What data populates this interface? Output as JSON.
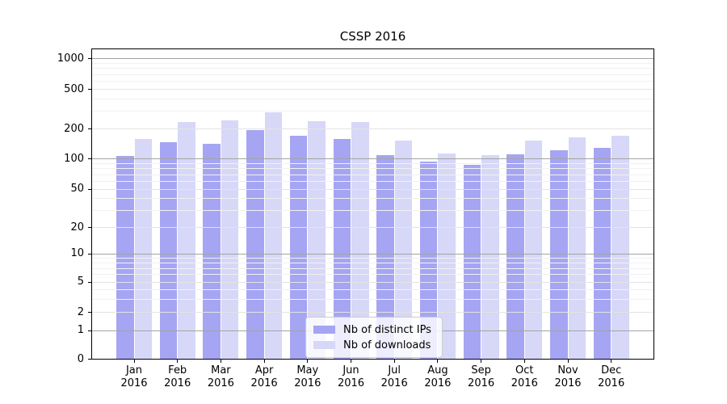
{
  "chart_data": {
    "type": "bar",
    "title": "CSSP 2016",
    "categories": [
      "Jan 2016",
      "Feb 2016",
      "Mar 2016",
      "Apr 2016",
      "May 2016",
      "Jun 2016",
      "Jul 2016",
      "Aug 2016",
      "Sep 2016",
      "Oct 2016",
      "Nov 2016",
      "Dec 2016"
    ],
    "series": [
      {
        "name": "Nb of distinct IPs",
        "color": "#a5a5f3",
        "values": [
          108,
          147,
          143,
          194,
          170,
          160,
          110,
          94,
          87,
          112,
          122,
          130
        ]
      },
      {
        "name": "Nb of downloads",
        "color": "#d7d7f8",
        "values": [
          160,
          237,
          246,
          295,
          242,
          236,
          153,
          113,
          110,
          152,
          165,
          172
        ]
      }
    ],
    "xlabel": "",
    "ylabel": "",
    "yscale": "symlog",
    "yticks": [
      0,
      1,
      2,
      5,
      10,
      20,
      50,
      100,
      200,
      500,
      1000
    ],
    "ylim": [
      0,
      1260
    ],
    "grid": true,
    "grid_position": "above-bars",
    "legend_position": "lower center",
    "colors": {
      "grid_major": "#a3a3a3",
      "grid_sub": "#e3e3e3",
      "grid_minor": "#f1f1f1",
      "axis": "#000000",
      "background": "#ffffff"
    }
  }
}
